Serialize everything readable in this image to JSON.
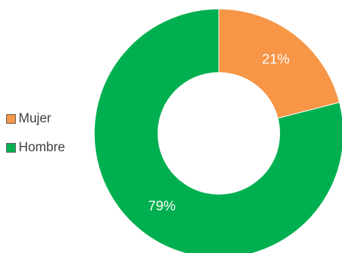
{
  "chart_data": {
    "type": "pie",
    "donut": true,
    "title": "",
    "legend_position": "left",
    "series": [
      {
        "name": "Mujer",
        "value": 21,
        "label": "21%",
        "color": "#F79646"
      },
      {
        "name": "Hombre",
        "value": 79,
        "label": "79%",
        "color": "#00B050"
      }
    ]
  }
}
